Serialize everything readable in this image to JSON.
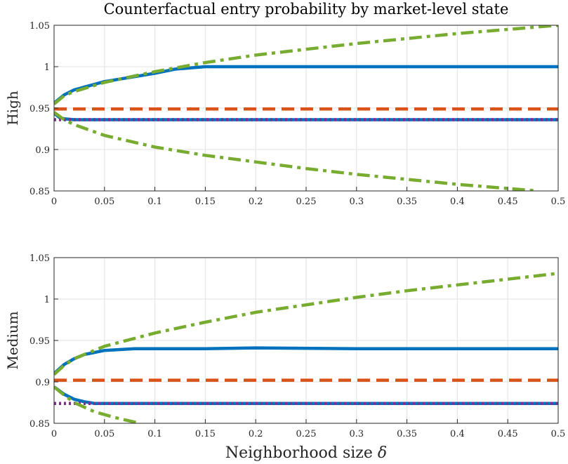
{
  "title": "Counterfactual entry probability by market-level state",
  "xlabel_text": "Neighborhood size ",
  "xlabel_symbol": "δ",
  "colors": {
    "blue": "#0072bd",
    "orange": "#d95319",
    "purple": "#7e2f8e",
    "green": "#77ac30"
  },
  "chart_data": [
    {
      "type": "line",
      "ylabel": "High",
      "xlim": [
        0,
        0.5
      ],
      "ylim": [
        0.85,
        1.05
      ],
      "xticks": [
        "0",
        "0.05",
        "0.1",
        "0.15",
        "0.2",
        "0.25",
        "0.3",
        "0.35",
        "0.4",
        "0.45",
        "0.5"
      ],
      "yticks": [
        "0.85",
        "0.9",
        "0.95",
        "1",
        "1.05"
      ],
      "grid": true,
      "series": [
        {
          "style": "solid-blue-upper",
          "x": [
            0,
            0.01,
            0.02,
            0.05,
            0.08,
            0.1,
            0.12,
            0.15,
            0.2,
            0.3,
            0.4,
            0.5
          ],
          "y": [
            0.956,
            0.966,
            0.972,
            0.982,
            0.988,
            0.992,
            0.997,
            1.0,
            1.0,
            1.0,
            1.0,
            1.0
          ]
        },
        {
          "style": "solid-blue-lower",
          "x": [
            0,
            0.005,
            0.01,
            0.02,
            0.5
          ],
          "y": [
            0.944,
            0.939,
            0.937,
            0.936,
            0.936
          ]
        },
        {
          "style": "dashed-orange",
          "x": [
            0,
            0.5
          ],
          "y": [
            0.949,
            0.949
          ]
        },
        {
          "style": "dotted-purple",
          "x": [
            0,
            0.5
          ],
          "y": [
            0.936,
            0.936
          ]
        },
        {
          "style": "dashdot-green-upper",
          "x": [
            0,
            0.01,
            0.02,
            0.05,
            0.1,
            0.15,
            0.2,
            0.25,
            0.3,
            0.35,
            0.4,
            0.45,
            0.5
          ],
          "y": [
            0.955,
            0.965,
            0.97,
            0.981,
            0.994,
            1.005,
            1.014,
            1.021,
            1.028,
            1.034,
            1.04,
            1.045,
            1.05
          ]
        },
        {
          "style": "dashdot-green-lower",
          "x": [
            0,
            0.01,
            0.02,
            0.05,
            0.1,
            0.15,
            0.2,
            0.25,
            0.3,
            0.35,
            0.4,
            0.45,
            0.48
          ],
          "y": [
            0.945,
            0.936,
            0.93,
            0.917,
            0.903,
            0.893,
            0.885,
            0.877,
            0.87,
            0.864,
            0.858,
            0.853,
            0.85
          ]
        }
      ]
    },
    {
      "type": "line",
      "ylabel": "Medium",
      "xlim": [
        0,
        0.5
      ],
      "ylim": [
        0.85,
        1.05
      ],
      "xticks": [
        "0",
        "0.05",
        "0.1",
        "0.15",
        "0.2",
        "0.25",
        "0.3",
        "0.35",
        "0.4",
        "0.45",
        "0.5"
      ],
      "yticks": [
        "0.85",
        "0.9",
        "0.95",
        "1",
        "1.05"
      ],
      "grid": true,
      "series": [
        {
          "style": "solid-blue-upper",
          "x": [
            0,
            0.01,
            0.02,
            0.03,
            0.05,
            0.08,
            0.1,
            0.15,
            0.2,
            0.3,
            0.4,
            0.5
          ],
          "y": [
            0.91,
            0.921,
            0.928,
            0.933,
            0.938,
            0.94,
            0.94,
            0.94,
            0.941,
            0.94,
            0.94,
            0.94
          ]
        },
        {
          "style": "solid-blue-lower",
          "x": [
            0,
            0.01,
            0.02,
            0.03,
            0.04,
            0.05,
            0.5
          ],
          "y": [
            0.894,
            0.885,
            0.879,
            0.876,
            0.874,
            0.874,
            0.874
          ]
        },
        {
          "style": "dashed-orange",
          "x": [
            0,
            0.5
          ],
          "y": [
            0.902,
            0.902
          ]
        },
        {
          "style": "dotted-purple",
          "x": [
            0,
            0.5
          ],
          "y": [
            0.874,
            0.874
          ]
        },
        {
          "style": "dashdot-green-upper",
          "x": [
            0,
            0.01,
            0.02,
            0.05,
            0.1,
            0.15,
            0.2,
            0.25,
            0.3,
            0.35,
            0.4,
            0.45,
            0.5
          ],
          "y": [
            0.909,
            0.92,
            0.928,
            0.943,
            0.959,
            0.972,
            0.984,
            0.993,
            1.002,
            1.01,
            1.017,
            1.024,
            1.031
          ]
        },
        {
          "style": "dashdot-green-lower",
          "x": [
            0,
            0.01,
            0.02,
            0.04,
            0.06,
            0.085
          ],
          "y": [
            0.894,
            0.884,
            0.875,
            0.864,
            0.857,
            0.85
          ]
        }
      ]
    }
  ]
}
